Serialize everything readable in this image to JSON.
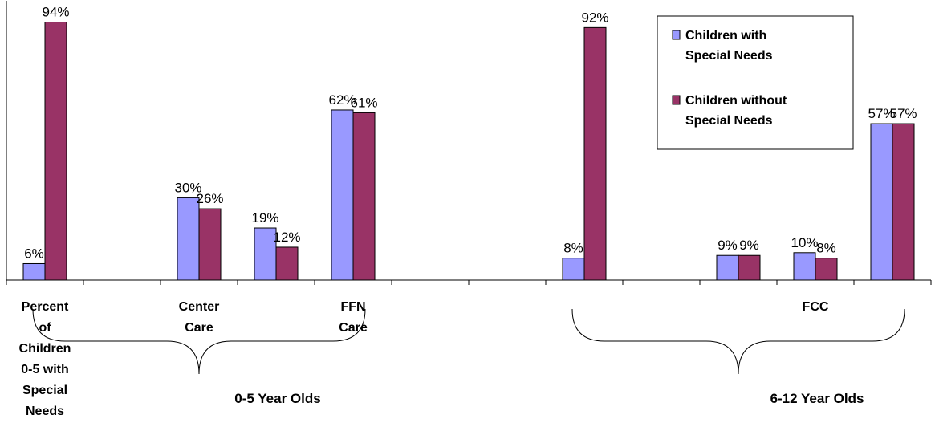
{
  "chart_data": {
    "type": "bar",
    "categories": [
      "Percent of Children 0-5 with Special Needs",
      "",
      "Center Care",
      "",
      "FFN Care",
      "",
      "",
      "",
      "",
      "",
      "FCC",
      ""
    ],
    "series": [
      {
        "name": "Children with Special Needs",
        "values": [
          6,
          null,
          30,
          19,
          62,
          null,
          null,
          8,
          null,
          9,
          10,
          57
        ],
        "color": "#9999ff"
      },
      {
        "name": "Children without Special Needs",
        "values": [
          94,
          null,
          26,
          12,
          61,
          null,
          null,
          92,
          null,
          9,
          8,
          57
        ],
        "color": "#993366"
      }
    ],
    "data_labels": [
      [
        "6%",
        "",
        "30%",
        "19%",
        "62%",
        "",
        "",
        "8%",
        "",
        "9%",
        "10%",
        "57%"
      ],
      [
        "94%",
        "",
        "26%",
        "12%",
        "61%",
        "",
        "",
        "92%",
        "",
        "9%",
        "8%",
        "57%"
      ]
    ],
    "category_label_lines": [
      [
        "Percent",
        "of",
        "Children",
        "0-5 with",
        "Special",
        "Needs"
      ],
      [],
      [
        "Center",
        "Care"
      ],
      [],
      [
        "FFN",
        "Care"
      ],
      [],
      [],
      [],
      [],
      [],
      [
        "FCC"
      ],
      []
    ],
    "groups": [
      {
        "label": "0-5 Year Olds",
        "from": 0,
        "to": 4
      },
      {
        "label": "6-12 Year Olds",
        "from": 7,
        "to": 11
      }
    ],
    "ylim": [
      0,
      100
    ],
    "grid": false,
    "legend_position": "top-right",
    "title": "",
    "xlabel": "",
    "ylabel": ""
  }
}
